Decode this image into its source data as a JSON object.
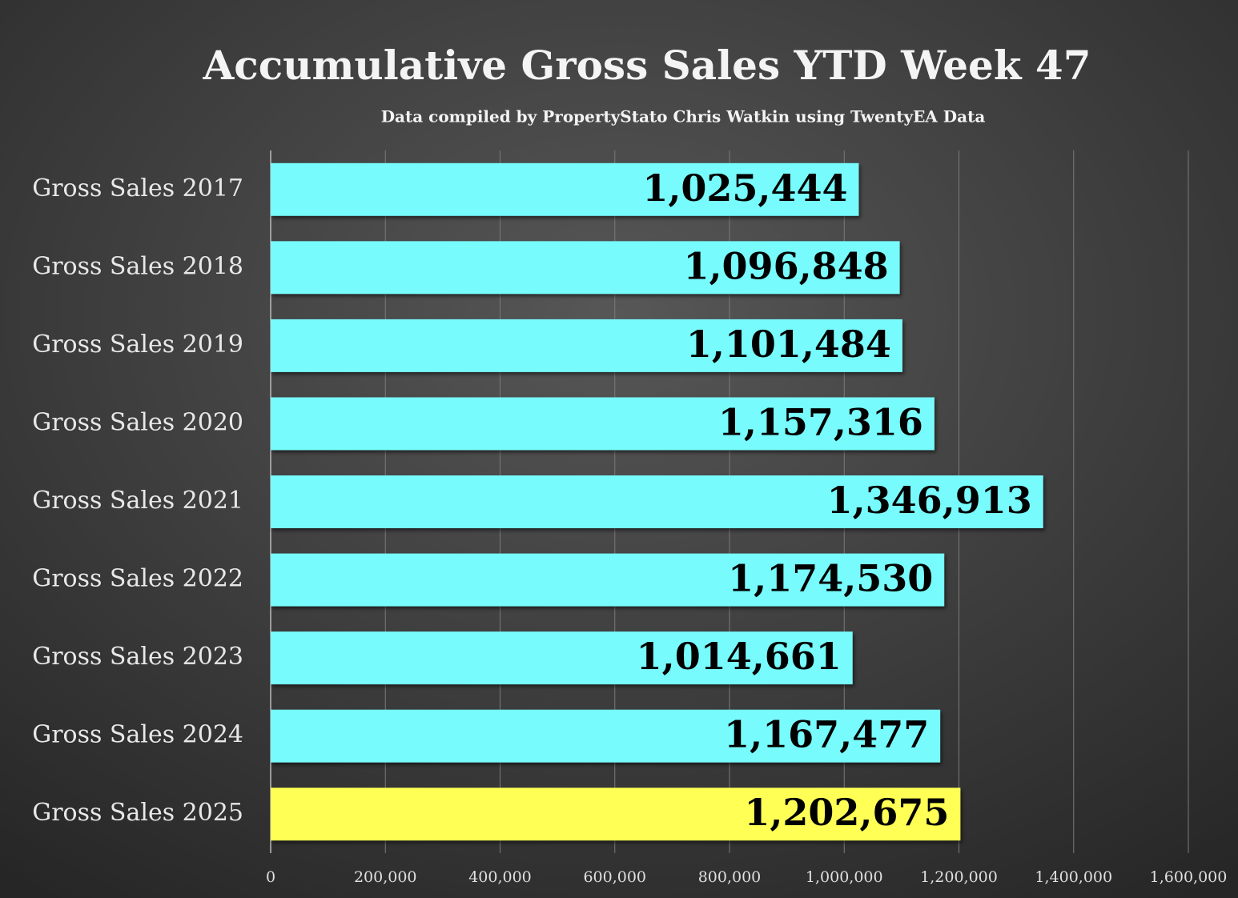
{
  "chart_data": {
    "type": "barh",
    "title": "Accumulative Gross Sales YTD Week 47",
    "subtitle": "Data compiled by PropertyStato Chris Watkin using TwentyEA Data",
    "categories": [
      "Gross Sales 2017",
      "Gross Sales 2018",
      "Gross Sales 2019",
      "Gross Sales 2020",
      "Gross Sales 2021",
      "Gross Sales 2022",
      "Gross Sales 2023",
      "Gross Sales 2024",
      "Gross Sales 2025"
    ],
    "values": [
      1025444,
      1096848,
      1101484,
      1157316,
      1346913,
      1174530,
      1014661,
      1167477,
      1202675
    ],
    "value_labels": [
      "1,025,444",
      "1,096,848",
      "1,101,484",
      "1,157,316",
      "1,346,913",
      "1,174,530",
      "1,014,661",
      "1,167,477",
      "1,202,675"
    ],
    "colors": [
      "#77fbfd",
      "#77fbfd",
      "#77fbfd",
      "#77fbfd",
      "#77fbfd",
      "#77fbfd",
      "#77fbfd",
      "#77fbfd",
      "#ffff55"
    ],
    "xlim": [
      0,
      1600000
    ],
    "xticks": [
      0,
      {
        "value": 200000,
        "label": "200,000"
      },
      {
        "value": 400000,
        "label": "400,000"
      },
      {
        "value": 600000,
        "label": "600,000"
      },
      {
        "value": 800000,
        "label": "800,000"
      },
      {
        "value": 1000000,
        "label": "1,000,000"
      },
      {
        "value": 1200000,
        "label": "1,200,000"
      },
      {
        "value": 1400000,
        "label": "1,400,000"
      },
      {
        "value": 1600000,
        "label": "1,600,000"
      }
    ],
    "grid": true
  }
}
